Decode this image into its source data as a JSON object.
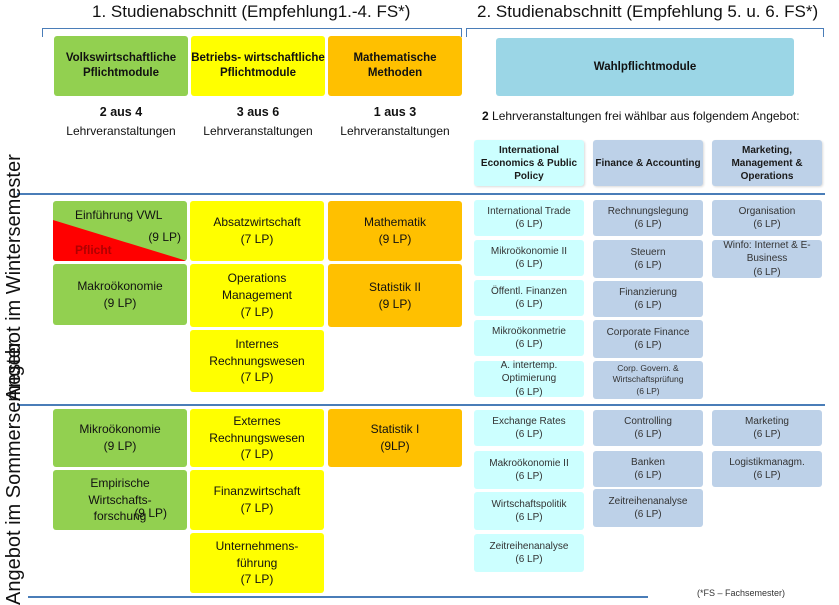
{
  "phases": {
    "phase1": "1. Studienabschnitt (Empfehlung1.-4. FS*)",
    "phase2": "2. Studienabschnitt (Empfehlung 5. u. 6. FS*)"
  },
  "categories": {
    "vwl": "Volkswirtschaftliche Pflichtmodule",
    "bwl": "Betriebs- wirtschaftliche Pflichtmodule",
    "math": "Mathematische Methoden",
    "wahl": "Wahlpflichtmodule"
  },
  "rules": {
    "vwl_count": "2 aus 4",
    "vwl_text": "Lehrveranstaltungen",
    "bwl_count": "3 aus 6",
    "bwl_text": "Lehrveranstaltungen",
    "math_count": "1 aus 3",
    "math_text": "Lehrveranstaltungen",
    "wahl_count": "2",
    "wahl_text": "Lehrveranstaltungen frei wählbar aus folgendem Angebot:"
  },
  "subcategories": {
    "iepp": "International Economics & Public Policy",
    "fa": "Finance & Accounting",
    "mmo": "Marketing, Management & Operations"
  },
  "semesters": {
    "winter": "Angebot im Wintersemester",
    "sommer": "Angebot im Sommersemester"
  },
  "pflicht_label": "Pflicht",
  "winter": {
    "vwl": [
      {
        "name": "Einführung VWL",
        "lp": "(9 LP)"
      },
      {
        "name": "Makroökonomie",
        "lp": "(9 LP)"
      }
    ],
    "bwl": [
      {
        "name": "Absatzwirtschaft",
        "lp": "(7 LP)"
      },
      {
        "name": "Operations Management",
        "lp": "(7 LP)"
      },
      {
        "name": "Internes Rechnungswesen",
        "lp": "(7 LP)"
      }
    ],
    "math": [
      {
        "name": "Mathematik",
        "lp": "(9 LP)"
      },
      {
        "name": "Statistik II",
        "lp": "(9 LP)"
      }
    ],
    "iepp": [
      {
        "name": "International Trade",
        "lp": "(6 LP)"
      },
      {
        "name": "Mikroökonomie II",
        "lp": "(6 LP)"
      },
      {
        "name": "Öffentl. Finanzen",
        "lp": "(6 LP)"
      },
      {
        "name": "Mikroökonmetrie",
        "lp": "(6 LP)"
      },
      {
        "name": "A. intertemp. Optimierung",
        "lp": "(6 LP)"
      }
    ],
    "fa": [
      {
        "name": "Rechnungslegung",
        "lp": "(6 LP)"
      },
      {
        "name": "Steuern",
        "lp": "(6 LP)"
      },
      {
        "name": "Finanzierung",
        "lp": "(6 LP)"
      },
      {
        "name": "Corporate Finance",
        "lp": "(6 LP)"
      },
      {
        "name": "Corp. Govern. & Wirtschaftsprüfung",
        "lp": "(6 LP)"
      }
    ],
    "mmo": [
      {
        "name": "Organisation",
        "lp": "(6 LP)"
      },
      {
        "name": "Winfo: Internet & E-Business",
        "lp": "(6 LP)"
      }
    ]
  },
  "sommer": {
    "vwl": [
      {
        "name": "Mikroökonomie",
        "lp": "(9 LP)"
      },
      {
        "name": "Empirische Wirtschafts- forschung",
        "lp": "(9 LP)"
      }
    ],
    "bwl": [
      {
        "name": "Externes Rechnungswesen",
        "lp": "(7 LP)"
      },
      {
        "name": "Finanzwirtschaft",
        "lp": "(7 LP)"
      },
      {
        "name": "Unternehmens- führung",
        "lp": "(7 LP)"
      }
    ],
    "math": [
      {
        "name": "Statistik I",
        "lp": "(9LP)"
      }
    ],
    "iepp": [
      {
        "name": "Exchange Rates",
        "lp": "(6 LP)"
      },
      {
        "name": "Makroökonomie II",
        "lp": "(6 LP)"
      },
      {
        "name": "Wirtschaftspolitik",
        "lp": "(6 LP)"
      },
      {
        "name": "Zeitreihenanalyse",
        "lp": "(6 LP)"
      }
    ],
    "fa": [
      {
        "name": "Controlling",
        "lp": "(6 LP)"
      },
      {
        "name": "Banken",
        "lp": "(6 LP)"
      },
      {
        "name": "Zeitreihenanalyse",
        "lp": "(6 LP)"
      }
    ],
    "mmo": [
      {
        "name": "Marketing",
        "lp": "(6 LP)"
      },
      {
        "name": "Logistikmanagm.",
        "lp": "(6 LP)"
      }
    ]
  },
  "footnote": "(*FS – Fachsemester)"
}
